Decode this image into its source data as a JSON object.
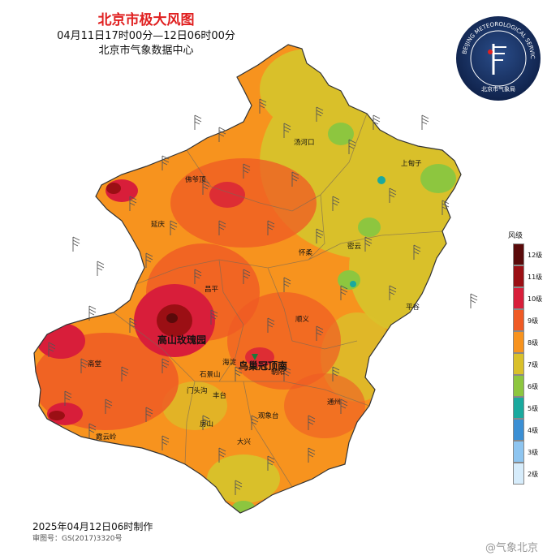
{
  "header": {
    "title": "北京市极大风图",
    "subtitle": "04月11日17时00分—12日06时00分",
    "source": "北京市气象数据中心"
  },
  "logo": {
    "ring_text": "BEIJING METEOROLOGICAL SERVICE",
    "bottom_text": "北京市气象局"
  },
  "legend": {
    "title": "风级",
    "levels": [
      {
        "label": "12级",
        "color": "#5a0a0a"
      },
      {
        "label": "11级",
        "color": "#9b0f14"
      },
      {
        "label": "10级",
        "color": "#d81e3a"
      },
      {
        "label": "9级",
        "color": "#ef5a24"
      },
      {
        "label": "8级",
        "color": "#f7931e"
      },
      {
        "label": "7级",
        "color": "#d9c02a"
      },
      {
        "label": "6级",
        "color": "#8dc63f"
      },
      {
        "label": "5级",
        "color": "#1aa99e"
      },
      {
        "label": "4级",
        "color": "#3b8fd4"
      },
      {
        "label": "3级",
        "color": "#8ec5f0"
      },
      {
        "label": "2级",
        "color": "#d6ecfb"
      }
    ]
  },
  "places": [
    {
      "name": "汤河口"
    },
    {
      "name": "上甸子"
    },
    {
      "name": "佛爷顶"
    },
    {
      "name": "延庆"
    },
    {
      "name": "怀柔"
    },
    {
      "name": "密云"
    },
    {
      "name": "昌平"
    },
    {
      "name": "平谷"
    },
    {
      "name": "顺义"
    },
    {
      "name": "斋堂"
    },
    {
      "name": "海淀"
    },
    {
      "name": "石景山"
    },
    {
      "name": "朝阳"
    },
    {
      "name": "门头沟"
    },
    {
      "name": "丰台"
    },
    {
      "name": "通州"
    },
    {
      "name": "房山"
    },
    {
      "name": "观象台"
    },
    {
      "name": "霞云岭"
    },
    {
      "name": "大兴"
    }
  ],
  "highlights": [
    {
      "name": "高山玫瑰园"
    },
    {
      "name": "鸟巢冠顶南"
    }
  ],
  "footer": {
    "date": "2025年04月12日06时制作",
    "approval": "审图号：GS(2017)3320号",
    "watermark": "@气象北京"
  }
}
